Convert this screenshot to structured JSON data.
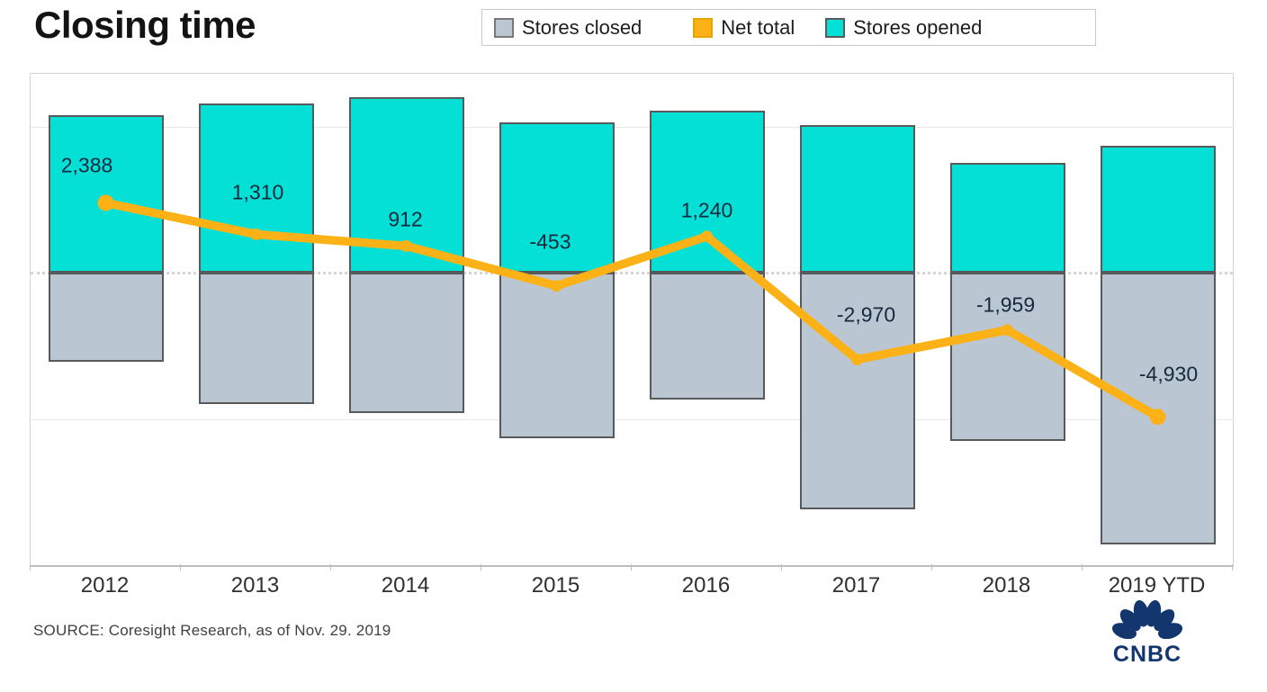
{
  "title": "Closing time",
  "legend": {
    "items": [
      {
        "label": "Stores closed",
        "swatch_color": "#BAC6D2",
        "swatch_border": "#77797c",
        "icon": "square-swatch"
      },
      {
        "label": "Net total",
        "swatch_color": "#FCB216",
        "swatch_border": "#e5a503",
        "icon": "square-swatch"
      },
      {
        "label": "Stores opened",
        "swatch_color": "#04E0D5",
        "swatch_border": "#59595b",
        "icon": "square-swatch"
      }
    ]
  },
  "source": "SOURCE: Coresight Research, as of Nov. 29. 2019",
  "logo_text": "CNBC",
  "colors": {
    "stores_opened": "#04E0D5",
    "stores_closed": "#BAC6D2",
    "net_total_line": "#FCB216",
    "bar_border": "#58595b",
    "logo_navy": "#14366e",
    "grid": "#e7e7e7",
    "zero_dotted": "#d4d4d4"
  },
  "chart_data": {
    "type": "bar+line combo (stacked diverging bars with net line)",
    "categories": [
      "2012",
      "2013",
      "2014",
      "2015",
      "2016",
      "2017",
      "2018",
      "2019 YTD"
    ],
    "series": [
      {
        "name": "Stores opened",
        "type": "bar",
        "color": "#04E0D5",
        "values": [
          5400,
          5800,
          6000,
          5150,
          5550,
          5050,
          3750,
          4350
        ]
      },
      {
        "name": "Stores closed",
        "type": "bar",
        "color": "#BAC6D2",
        "values": [
          -3050,
          -4500,
          -4800,
          -5650,
          -4350,
          -8100,
          -5750,
          -9300
        ]
      },
      {
        "name": "Net total",
        "type": "line",
        "color": "#FCB216",
        "values": [
          2388,
          1310,
          912,
          -453,
          1240,
          -2970,
          -1959,
          -4930
        ],
        "point_labels": [
          "2,388",
          "1,310",
          "912",
          "-453",
          "1,240",
          "-2,970",
          "-1,959",
          "-4,930"
        ],
        "label_offsets": [
          [
            -21,
            -41
          ],
          [
            2,
            -46
          ],
          [
            -1,
            -29
          ],
          [
            -7,
            -49
          ],
          [
            0,
            -29
          ],
          [
            10,
            -50
          ],
          [
            -2,
            -28
          ],
          [
            12,
            -47
          ]
        ]
      }
    ],
    "ylabel": "",
    "xlabel": "",
    "ylim": [
      -10000,
      6800
    ],
    "gridlines_at": [
      5000,
      -5000
    ],
    "zero_line_style": "dotted",
    "y_axis_labels_visible": false,
    "grid": "horizontal only",
    "legend_position": "top"
  }
}
